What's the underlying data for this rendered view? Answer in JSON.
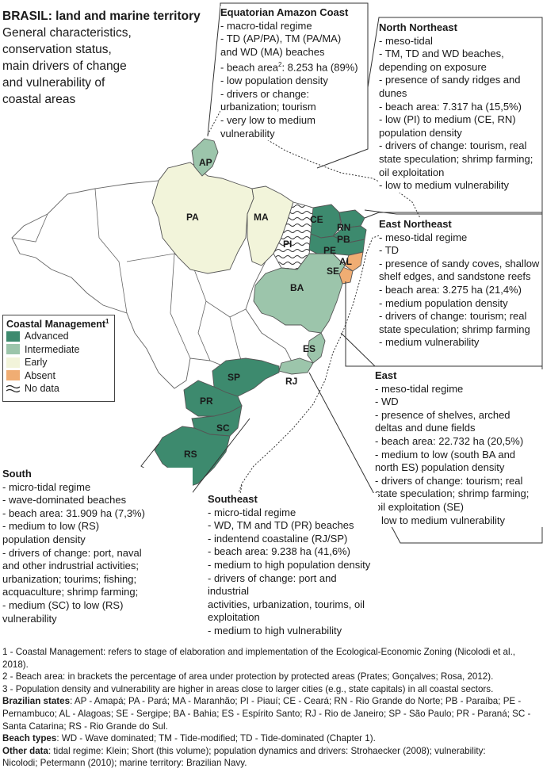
{
  "title": {
    "line1": "BRASIL: land and marine territory",
    "line2": "General characteristics,",
    "line3": "conservation status,",
    "line4": "main drivers of change",
    "line5": "and vulnerability of",
    "line6": "coastal areas"
  },
  "colors": {
    "advanced": "#3d8a6e",
    "intermediate": "#9cc5ab",
    "early": "#f2f4da",
    "absent": "#f0ad73",
    "border": "#555555"
  },
  "legend": {
    "title": "Coastal Management",
    "title_sup": "1",
    "items": [
      "Advanced",
      "Intermediate",
      "Early",
      "Absent",
      "No data"
    ]
  },
  "states": [
    "AP",
    "PA",
    "MA",
    "PI",
    "CE",
    "RN",
    "PB",
    "PE",
    "AL",
    "SE",
    "BA",
    "ES",
    "RJ",
    "SP",
    "PR",
    "SC",
    "RS"
  ],
  "sectors": {
    "equatorial": {
      "heading": "Equatorian Amazon Coast",
      "l1": "- macro-tidal regime",
      "l2": "- TD (AP/PA), TM (PA/MA)",
      "l3": "and WD (MA) beaches",
      "l4a": "- beach area",
      "l4sup": "2",
      "l4b": ": 8.253 ha (89%)",
      "l5": "- low population density",
      "l6": "- drivers or change:",
      "l7": "urbanization; tourism",
      "l8": "- very low to medium",
      "l9": "vulnerability"
    },
    "north_northeast": {
      "heading": "North Northeast",
      "l1": "- meso-tidal",
      "l2": "- TM, TD and WD beaches,",
      "l3": "depending on exposure",
      "l4": "- presence of sandy ridges and",
      "l5": "dunes",
      "l6": "- beach area: 7.317 ha (15,5%)",
      "l7": "- low (PI) to medium (CE, RN)",
      "l8": "population density",
      "l9": "- drivers of change: tourism, real",
      "l10": "state speculation; shrimp farming;",
      "l11": "oil exploitation",
      "l12": "- low to medium vulnerability"
    },
    "east_northeast": {
      "heading": "East Northeast",
      "l1": "- meso-tidal regime",
      "l2": "- TD",
      "l3": "- presence of sandy coves, shallow",
      "l4": "shelf edges, and sandstone reefs",
      "l5": "- beach area: 3.275 ha (21,4%)",
      "l6": "- medium population density",
      "l7": "- drivers of change: tourism; real",
      "l8": "state speculation; shrimp farming",
      "l9": "- medium vulnerability"
    },
    "east": {
      "heading": "East",
      "l1": "- meso-tidal regime",
      "l2": "- WD",
      "l3": "- presence of shelves, arched",
      "l4": "deltas and dune fields",
      "l5": "- beach area: 22.732 ha (20,5%)",
      "l6": "- medium to low (south BA and",
      "l7": "north ES) population density",
      "l8": "- drivers of change: tourism; real",
      "l9": "state speculation; shrimp farming;",
      "l10": "oil exploitation (SE)",
      "l11": "- low to medium vulnerability"
    },
    "south": {
      "heading": "South",
      "l1": "- micro-tidal regime",
      "l2": "- wave-dominated beaches",
      "l3": "- beach area: 31.909 ha (7,3%)",
      "l4": "- medium to low (RS)",
      "l5": "population density",
      "l6": "- drivers of change: port, naval",
      "l7": "and other indrustrial activities;",
      "l8": "urbanization; tourims; fishing;",
      "l9": "acquaculture; shrimp farming;",
      "l10": "- medium (SC) to low (RS)",
      "l11": "vulnerability"
    },
    "southeast": {
      "heading": "Southeast",
      "l1": "- micro-tidal regime",
      "l2": "- WD, TM and TD (PR) beaches",
      "l3": "- indentend coastaline (RJ/SP)",
      "l4": "- beach area: 9.238 ha (41,6%)",
      "l5": "- medium to high population density",
      "l6": "- drivers of change: port and industrial",
      "l7": "activities, urbanization, tourims, oil",
      "l8": "exploitation",
      "l9": "- medium to high vulnerability"
    }
  },
  "notes": {
    "n1": "1 - Coastal Management: refers to stage of elaboration and implementation of the Ecological-Economic Zoning (Nicolodi et al.,",
    "n1b": "2018).",
    "n2": "2 - Beach area: in brackets the percentage of area under protection by protected areas (Prates; Gonçalves; Rosa, 2012).",
    "n3": "3 - Population density and vulnerability are higher in areas close to larger cities (e.g., state capitals) in all coastal sectors.",
    "states_label": "Brazilian states",
    "states_1": ": AP - Amapá; PA - Pará; MA - Maranhão; PI - Piauí; CE - Ceará; RN - Rio Grande do Norte; PB - Paraíba; PE -",
    "states_2": "Pernambuco; AL - Alagoas; SE - Sergipe; BA - Bahia; ES - Espírito Santo; RJ - Rio de Janeiro; SP - São Paulo; PR - Paraná; SC -",
    "states_3": "Santa Catarina; RS - Rio Grande do Sul.",
    "beach_label": "Beach types",
    "beach_text": ": WD - Wave dominated; TM - Tide-modified; TD - Tide-dominated (Chapter 1).",
    "other_label": "Other data",
    "other_1": ": tidal regime: Klein; Short (this volume); population dynamics and drivers: Strohaecker (2008); vulnerability:",
    "other_2": "Nicolodi; Petermann (2010); marine territory: Brazilian Navy."
  }
}
